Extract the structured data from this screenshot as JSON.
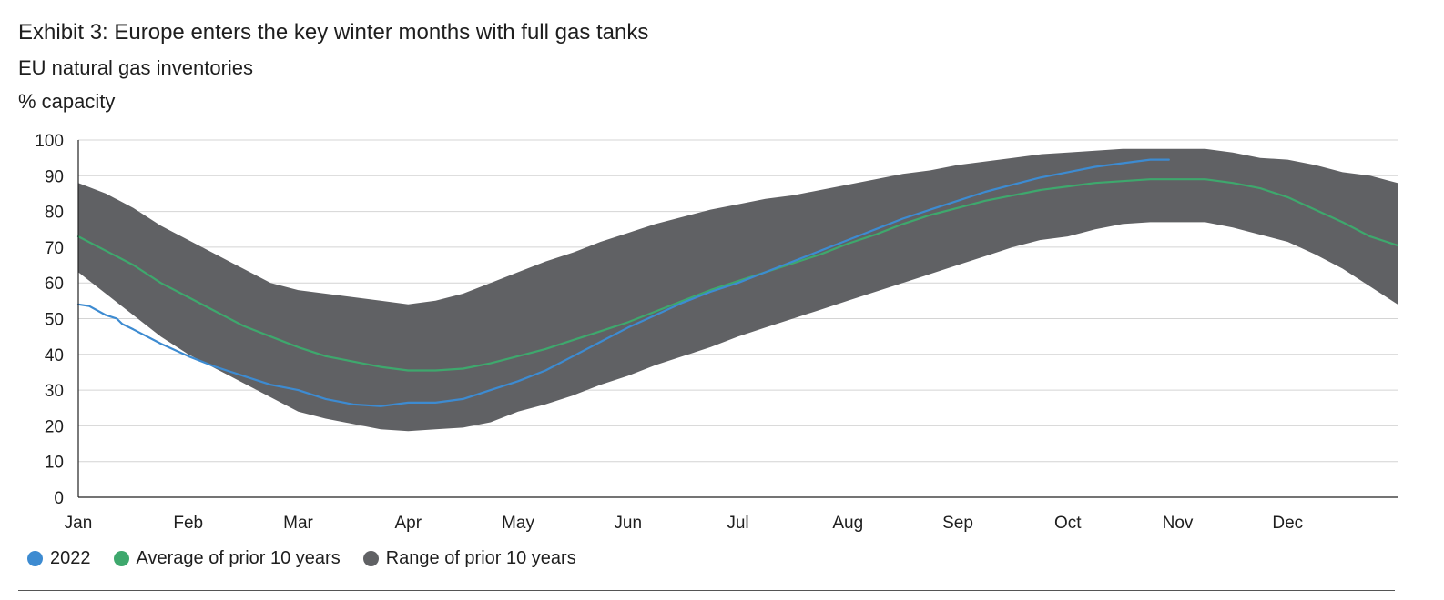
{
  "header": {
    "title": "Exhibit 3: Europe enters the key winter months with full gas tanks",
    "subtitle": "EU natural gas inventories",
    "unit": "% capacity"
  },
  "legend": {
    "items": [
      {
        "label": "2022",
        "color": "#3d8bd1"
      },
      {
        "label": "Average of prior 10 years",
        "color": "#3ea86d"
      },
      {
        "label": "Range of prior 10 years",
        "color": "#606164"
      }
    ]
  },
  "chart_data": {
    "type": "area",
    "title": "Exhibit 3: Europe enters the key winter months with full gas tanks",
    "subtitle": "EU natural gas inventories",
    "ylabel": "% capacity",
    "xlabel": "",
    "ylim": [
      0,
      100
    ],
    "yticks": [
      0,
      10,
      20,
      30,
      40,
      50,
      60,
      70,
      80,
      90,
      100
    ],
    "xlim": [
      0,
      12
    ],
    "xtick_labels": [
      "Jan",
      "Feb",
      "Mar",
      "Apr",
      "May",
      "Jun",
      "Jul",
      "Aug",
      "Sep",
      "Oct",
      "Nov",
      "Dec"
    ],
    "xtick_positions": [
      0,
      1,
      2,
      3,
      4,
      5,
      6,
      7,
      8,
      9,
      10,
      11
    ],
    "grid": "horizontal",
    "legend_position": "bottom-left",
    "range": {
      "name": "Range of prior 10 years",
      "color": "#606164",
      "x": [
        0,
        0.25,
        0.5,
        0.75,
        1,
        1.25,
        1.5,
        1.75,
        2,
        2.25,
        2.5,
        2.75,
        3,
        3.25,
        3.5,
        3.75,
        4,
        4.25,
        4.5,
        4.75,
        5,
        5.25,
        5.5,
        5.75,
        6,
        6.25,
        6.5,
        6.75,
        7,
        7.25,
        7.5,
        7.75,
        8,
        8.25,
        8.5,
        8.75,
        9,
        9.25,
        9.5,
        9.75,
        10,
        10.25,
        10.5,
        10.75,
        11,
        11.25,
        11.5,
        11.75,
        12
      ],
      "high": [
        88,
        85,
        81,
        76,
        72,
        68,
        64,
        60,
        58,
        57,
        56,
        55,
        54,
        55,
        57,
        60,
        63,
        66,
        68.5,
        71.5,
        74,
        76.5,
        78.5,
        80.5,
        82,
        83.5,
        84.5,
        86,
        87.5,
        89,
        90.5,
        91.5,
        93,
        94,
        95,
        96,
        96.5,
        97,
        97.5,
        97.5,
        97.5,
        97.5,
        96.5,
        95,
        94.5,
        93,
        91,
        90,
        88
      ],
      "low": [
        63,
        57,
        51,
        45,
        40,
        36,
        32,
        28,
        24,
        22,
        20.5,
        19,
        18.5,
        19,
        19.5,
        21,
        24,
        26,
        28.5,
        31.5,
        34,
        37,
        39.5,
        42,
        45,
        47.5,
        50,
        52.5,
        55,
        57.5,
        60,
        62.5,
        65,
        67.5,
        70,
        72,
        73,
        75,
        76.5,
        77,
        77,
        77,
        75.5,
        73.5,
        71.5,
        68,
        64,
        59,
        54
      ]
    },
    "series": [
      {
        "name": "Average of prior 10 years",
        "color": "#3ea86d",
        "x": [
          0,
          0.25,
          0.5,
          0.75,
          1,
          1.25,
          1.5,
          1.75,
          2,
          2.25,
          2.5,
          2.75,
          3,
          3.25,
          3.5,
          3.75,
          4,
          4.25,
          4.5,
          4.75,
          5,
          5.25,
          5.5,
          5.75,
          6,
          6.25,
          6.5,
          6.75,
          7,
          7.25,
          7.5,
          7.75,
          8,
          8.25,
          8.5,
          8.75,
          9,
          9.25,
          9.5,
          9.75,
          10,
          10.25,
          10.5,
          10.75,
          11,
          11.25,
          11.5,
          11.75,
          12
        ],
        "values": [
          73,
          69,
          65,
          60,
          56,
          52,
          48,
          45,
          42,
          39.5,
          38,
          36.5,
          35.5,
          35.5,
          36,
          37.5,
          39.5,
          41.5,
          44,
          46.5,
          49,
          52,
          55,
          58,
          60.5,
          63,
          65.5,
          68,
          71,
          73.5,
          76.5,
          79,
          81,
          83,
          84.5,
          86,
          87,
          88,
          88.5,
          89,
          89,
          89,
          88,
          86.5,
          84,
          80.5,
          77,
          73,
          70.5
        ]
      },
      {
        "name": "2022",
        "color": "#3d8bd1",
        "x": [
          0,
          0.1,
          0.25,
          0.35,
          0.4,
          0.5,
          0.75,
          1,
          1.25,
          1.5,
          1.75,
          2,
          2.25,
          2.5,
          2.75,
          3,
          3.1,
          3.25,
          3.5,
          3.75,
          4,
          4.25,
          4.5,
          4.75,
          5,
          5.25,
          5.5,
          5.75,
          6,
          6.25,
          6.5,
          6.75,
          7,
          7.25,
          7.5,
          7.75,
          8,
          8.25,
          8.5,
          8.75,
          9,
          9.25,
          9.5,
          9.75,
          9.92
        ],
        "values": [
          54,
          53.5,
          51,
          50,
          48.5,
          47,
          43,
          39.5,
          36.5,
          34,
          31.5,
          30,
          27.5,
          26,
          25.5,
          26.5,
          26.5,
          26.5,
          27.5,
          30,
          32.5,
          35.5,
          39.5,
          43.5,
          47.5,
          51,
          54.5,
          57.5,
          60,
          63,
          66,
          69,
          72,
          75,
          78,
          80.5,
          83,
          85.5,
          87.5,
          89.5,
          91,
          92.5,
          93.5,
          94.5,
          94.5
        ]
      }
    ]
  }
}
